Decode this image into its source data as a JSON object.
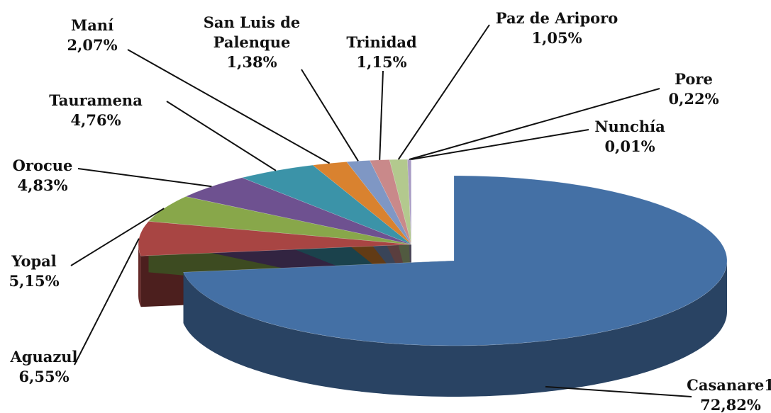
{
  "chart_data": {
    "type": "pie3d",
    "categories": [
      "Casanare1",
      "Aguazul",
      "Yopal",
      "Orocue",
      "Tauramena",
      "Maní",
      "San Luis de Palenque",
      "Trinidad",
      "Paz de Ariporo",
      "Pore",
      "Nunchía"
    ],
    "values": [
      72.82,
      6.55,
      5.15,
      4.83,
      4.76,
      2.07,
      1.38,
      1.15,
      1.05,
      0.22,
      0.01
    ],
    "value_labels": [
      "72,82%",
      "6,55%",
      "5,15%",
      "4,83%",
      "4,76%",
      "2,07%",
      "1,38%",
      "1,15%",
      "1,05%",
      "0,22%",
      "0,01%"
    ],
    "colors": [
      "#4470a5",
      "#a84543",
      "#88a74a",
      "#6e5190",
      "#3b93a8",
      "#d9822f",
      "#7f97c4",
      "#c9898a",
      "#b3c98e",
      "#a99bc4",
      "#8fc6d9"
    ]
  }
}
